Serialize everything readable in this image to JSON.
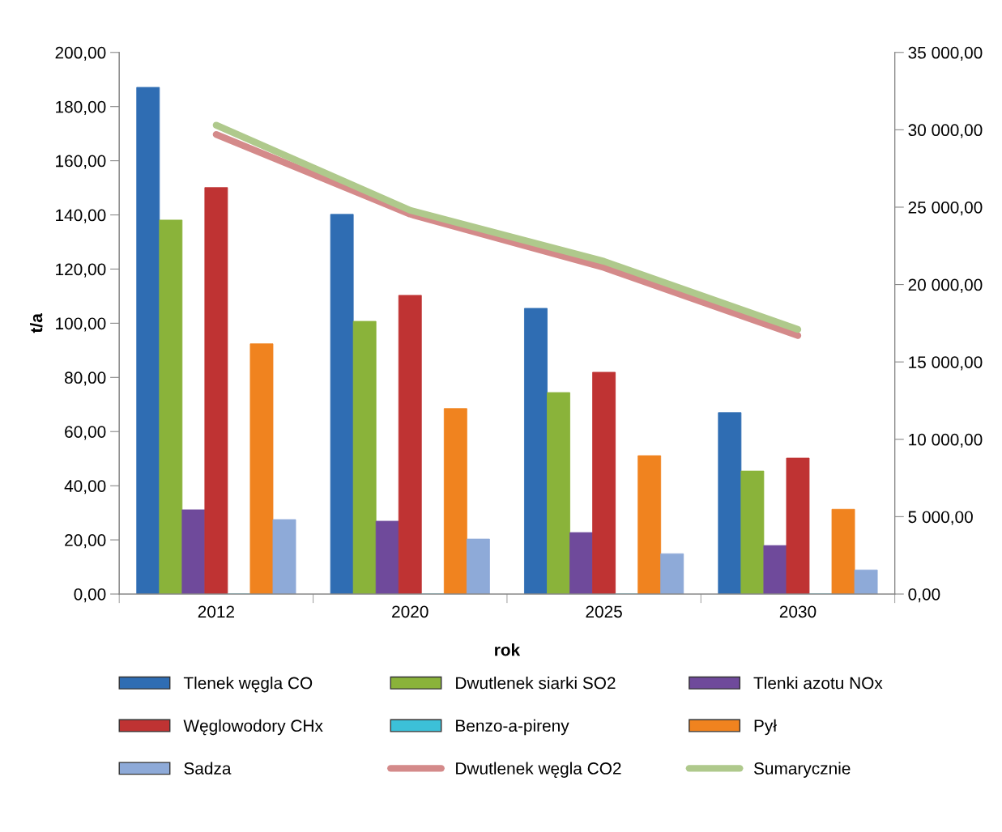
{
  "chart_data": {
    "type": "bar",
    "xlabel": "rok",
    "ylabel": "t/a",
    "categories": [
      "2012",
      "2020",
      "2025",
      "2030"
    ],
    "series": [
      {
        "name": "Tlenek węgla CO",
        "color": "#2f6db3",
        "values": [
          187.1,
          140.2,
          105.5,
          67.0
        ]
      },
      {
        "name": "Dwutlenek siarki SO2",
        "color": "#8ab33a",
        "values": [
          138.1,
          100.7,
          74.4,
          45.4
        ]
      },
      {
        "name": "Tlenki azotu NOx",
        "color": "#6f4a9b",
        "values": [
          31.1,
          26.9,
          22.7,
          17.9
        ]
      },
      {
        "name": "Węglowodory CHx",
        "color": "#bf3333",
        "values": [
          150.1,
          110.3,
          81.9,
          50.2
        ]
      },
      {
        "name": "Benzo-a-pireny",
        "color": "#3cc0d8",
        "values": [
          0,
          0,
          0,
          0
        ]
      },
      {
        "name": "Pył",
        "color": "#f0831f",
        "values": [
          92.4,
          68.5,
          51.1,
          31.3
        ]
      },
      {
        "name": "Sadza",
        "color": "#8eaad8",
        "values": [
          27.5,
          20.3,
          14.9,
          8.9
        ]
      },
      {
        "name": "Dwutlenek węgla CO2",
        "color": "#d48a8a",
        "type": "line",
        "axis": "y2",
        "values": [
          29700,
          24550,
          21100,
          16700
        ]
      },
      {
        "name": "Sumarycznie",
        "color": "#afc98c",
        "type": "line",
        "axis": "y2",
        "values": [
          30300,
          24800,
          21500,
          17100
        ]
      }
    ],
    "ylim": [
      0,
      200
    ],
    "yticks": [
      {
        "value": 0,
        "label": "0,00"
      },
      {
        "value": 20,
        "label": "20,00"
      },
      {
        "value": 40,
        "label": "40,00"
      },
      {
        "value": 60,
        "label": "60,00"
      },
      {
        "value": 80,
        "label": "80,00"
      },
      {
        "value": 100,
        "label": "100,00"
      },
      {
        "value": 120,
        "label": "120,00"
      },
      {
        "value": 140,
        "label": "140,00"
      },
      {
        "value": 160,
        "label": "160,00"
      },
      {
        "value": 180,
        "label": "180,00"
      },
      {
        "value": 200,
        "label": "200,00"
      }
    ],
    "y2lim": [
      0,
      35000
    ],
    "y2ticks": [
      {
        "value": 0,
        "label": "0,00"
      },
      {
        "value": 5000,
        "label": "5 000,00"
      },
      {
        "value": 10000,
        "label": "10 000,00"
      },
      {
        "value": 15000,
        "label": "15 000,00"
      },
      {
        "value": 20000,
        "label": "20 000,00"
      },
      {
        "value": 25000,
        "label": "25 000,00"
      },
      {
        "value": 30000,
        "label": "30 000,00"
      },
      {
        "value": 35000,
        "label": "35 000,00"
      }
    ],
    "grid": false,
    "legend": "bottom",
    "marker": "none",
    "line_style": "solid"
  }
}
